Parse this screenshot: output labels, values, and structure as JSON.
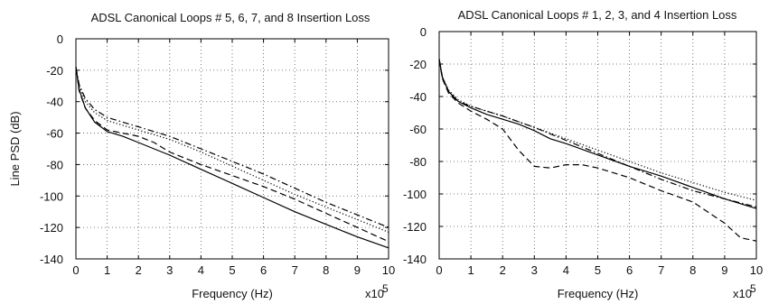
{
  "chart_data": [
    {
      "type": "line",
      "title": "ADSL Canonical Loops # 5, 6, 7, and 8 Insertion Loss",
      "xlabel": "Frequency (Hz)",
      "ylabel": "Line PSD (dB)",
      "x_multiplier": "x10",
      "x_multiplier_exp": "5",
      "xlim": [
        0,
        10
      ],
      "ylim": [
        -140,
        0
      ],
      "xticks": [
        "0",
        "1",
        "2",
        "3",
        "4",
        "5",
        "6",
        "7",
        "8",
        "9",
        "10"
      ],
      "yticks": [
        "0",
        "-20",
        "-40",
        "-60",
        "-80",
        "-100",
        "-120",
        "-140"
      ],
      "grid": true,
      "series": [
        {
          "style": "solid",
          "x": [
            0,
            0.1,
            0.3,
            0.6,
            1,
            1.5,
            2,
            3,
            4,
            5,
            6,
            7,
            8,
            9,
            10
          ],
          "y": [
            -18,
            -32,
            -44,
            -53,
            -59,
            -62,
            -66,
            -74,
            -83,
            -92,
            -101,
            -110,
            -118,
            -126,
            -133
          ]
        },
        {
          "style": "dotted",
          "x": [
            0,
            0.1,
            0.3,
            0.6,
            1,
            1.5,
            2,
            3,
            4,
            5,
            6,
            7,
            8,
            9,
            10
          ],
          "y": [
            -18,
            -30,
            -40,
            -47,
            -52,
            -55,
            -58,
            -64,
            -72,
            -81,
            -90,
            -99,
            -107,
            -115,
            -123
          ]
        },
        {
          "style": "dashed",
          "x": [
            0,
            0.1,
            0.3,
            0.6,
            1,
            1.5,
            2,
            2.5,
            3,
            3.5,
            4,
            5,
            6,
            7,
            8,
            9,
            10
          ],
          "y": [
            -18,
            -33,
            -44,
            -52,
            -58,
            -60,
            -62,
            -66,
            -72,
            -76,
            -80,
            -87,
            -94,
            -102,
            -111,
            -120,
            -129
          ]
        },
        {
          "style": "dashdot",
          "x": [
            0,
            0.1,
            0.3,
            0.6,
            1,
            1.5,
            2,
            3,
            4,
            5,
            6,
            7,
            8,
            9,
            10
          ],
          "y": [
            -18,
            -29,
            -38,
            -45,
            -50,
            -53,
            -56,
            -62,
            -70,
            -78,
            -86,
            -95,
            -104,
            -112,
            -120
          ]
        }
      ]
    },
    {
      "type": "line",
      "title": "ADSL Canonical Loops # 1, 2, 3, and 4 Insertion Loss",
      "xlabel": "Frequency (Hz)",
      "ylabel": "",
      "x_multiplier": "x10",
      "x_multiplier_exp": "5",
      "xlim": [
        0,
        10
      ],
      "ylim": [
        -140,
        0
      ],
      "xticks": [
        "0",
        "1",
        "2",
        "3",
        "4",
        "5",
        "6",
        "7",
        "8",
        "9",
        "10"
      ],
      "yticks": [
        "0",
        "-20",
        "-40",
        "-60",
        "-80",
        "-100",
        "-120",
        "-140"
      ],
      "grid": true,
      "series": [
        {
          "style": "solid",
          "x": [
            0,
            0.1,
            0.3,
            0.6,
            1,
            1.5,
            2,
            2.5,
            3,
            3.5,
            4,
            5,
            6,
            7,
            8,
            9,
            10
          ],
          "y": [
            -17,
            -28,
            -37,
            -43,
            -47,
            -51,
            -54,
            -57,
            -61,
            -66,
            -69,
            -76,
            -83,
            -89,
            -96,
            -103,
            -109
          ]
        },
        {
          "style": "dotted",
          "x": [
            0,
            0.1,
            0.3,
            0.6,
            1,
            1.5,
            2,
            3,
            4,
            5,
            6,
            7,
            8,
            9,
            10
          ],
          "y": [
            -17,
            -28,
            -36,
            -42,
            -46,
            -49,
            -52,
            -59,
            -66,
            -73,
            -80,
            -87,
            -93,
            -99,
            -104
          ]
        },
        {
          "style": "dashed",
          "x": [
            0,
            0.1,
            0.3,
            0.6,
            1,
            1.5,
            2,
            2.5,
            3,
            3.5,
            4,
            4.5,
            5,
            6,
            7,
            8,
            9,
            9.5,
            10
          ],
          "y": [
            -17,
            -29,
            -38,
            -44,
            -49,
            -54,
            -60,
            -73,
            -83,
            -84,
            -82,
            -82,
            -84,
            -90,
            -98,
            -105,
            -118,
            -127,
            -129
          ]
        },
        {
          "style": "dashdot",
          "x": [
            0,
            0.1,
            0.3,
            0.6,
            1,
            1.5,
            2,
            3,
            4,
            5,
            6,
            7,
            8,
            9,
            10
          ],
          "y": [
            -17,
            -28,
            -37,
            -43,
            -46,
            -49,
            -52,
            -59,
            -67,
            -75,
            -83,
            -91,
            -98,
            -103,
            -108
          ]
        }
      ]
    }
  ]
}
